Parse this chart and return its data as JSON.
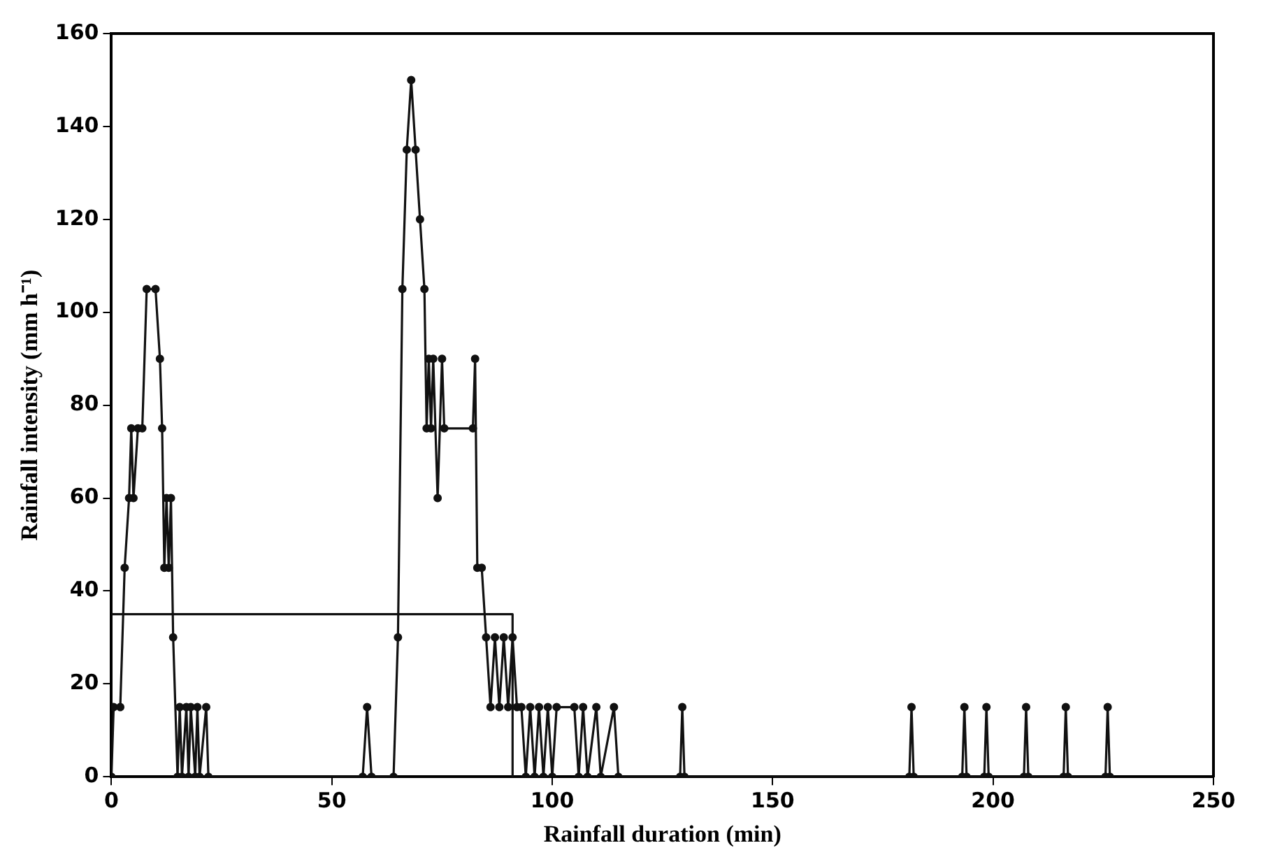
{
  "chart_data": {
    "type": "line",
    "xlabel": "Rainfall duration (min)",
    "ylabel": "Rainfall intensity (mm h⁻¹)",
    "xlim": [
      0,
      250
    ],
    "xticks": [
      0,
      50,
      100,
      150,
      200,
      250
    ],
    "ylim": [
      0,
      160
    ],
    "yticks": [
      0,
      20,
      40,
      60,
      80,
      100,
      120,
      140,
      160
    ],
    "grid": false,
    "legend": false,
    "marker": "circle",
    "line_style": "solid",
    "series": [
      {
        "color": "#111111",
        "x": [
          0,
          0.5,
          2,
          3,
          4,
          4.5,
          5,
          6,
          7,
          8,
          10,
          11,
          11.5,
          12,
          12.5,
          13,
          13.5,
          14,
          15,
          15.5,
          16,
          17,
          17.5,
          18,
          19,
          19.5,
          20,
          21.5,
          22,
          57,
          58,
          59,
          64,
          65,
          66,
          67,
          68,
          69,
          70,
          71,
          71.5,
          72,
          72.5,
          73,
          74,
          75,
          75.5,
          82,
          82.5,
          83,
          84,
          85,
          86,
          87,
          88,
          89,
          90,
          91,
          92,
          93,
          94,
          95,
          96,
          97,
          98,
          99,
          100,
          101,
          105,
          106,
          107,
          108,
          110,
          111,
          114,
          115,
          129,
          129.5,
          130,
          181,
          181.5,
          182,
          193,
          193.5,
          194,
          198,
          198.5,
          199,
          207,
          207.5,
          208,
          216,
          216.5,
          217,
          225.5,
          226,
          226.5
        ],
        "values": [
          0,
          15,
          15,
          45,
          60,
          75,
          60,
          75,
          75,
          105,
          105,
          90,
          75,
          45,
          60,
          45,
          60,
          30,
          0,
          15,
          0,
          15,
          0,
          15,
          0,
          15,
          0,
          15,
          0,
          0,
          15,
          0,
          0,
          30,
          105,
          135,
          150,
          135,
          120,
          105,
          75,
          90,
          75,
          90,
          60,
          90,
          75,
          75,
          90,
          45,
          45,
          30,
          15,
          30,
          15,
          30,
          15,
          30,
          15,
          15,
          0,
          15,
          0,
          15,
          0,
          15,
          0,
          15,
          15,
          0,
          15,
          0,
          15,
          0,
          15,
          0,
          0,
          15,
          0,
          0,
          15,
          0,
          0,
          15,
          0,
          0,
          15,
          0,
          0,
          15,
          0,
          0,
          15,
          0,
          0,
          15,
          0
        ]
      },
      {
        "color": "#111111",
        "type": "step",
        "marker": "none",
        "x": [
          0,
          91,
          91
        ],
        "values": [
          35,
          35,
          0
        ]
      }
    ]
  }
}
